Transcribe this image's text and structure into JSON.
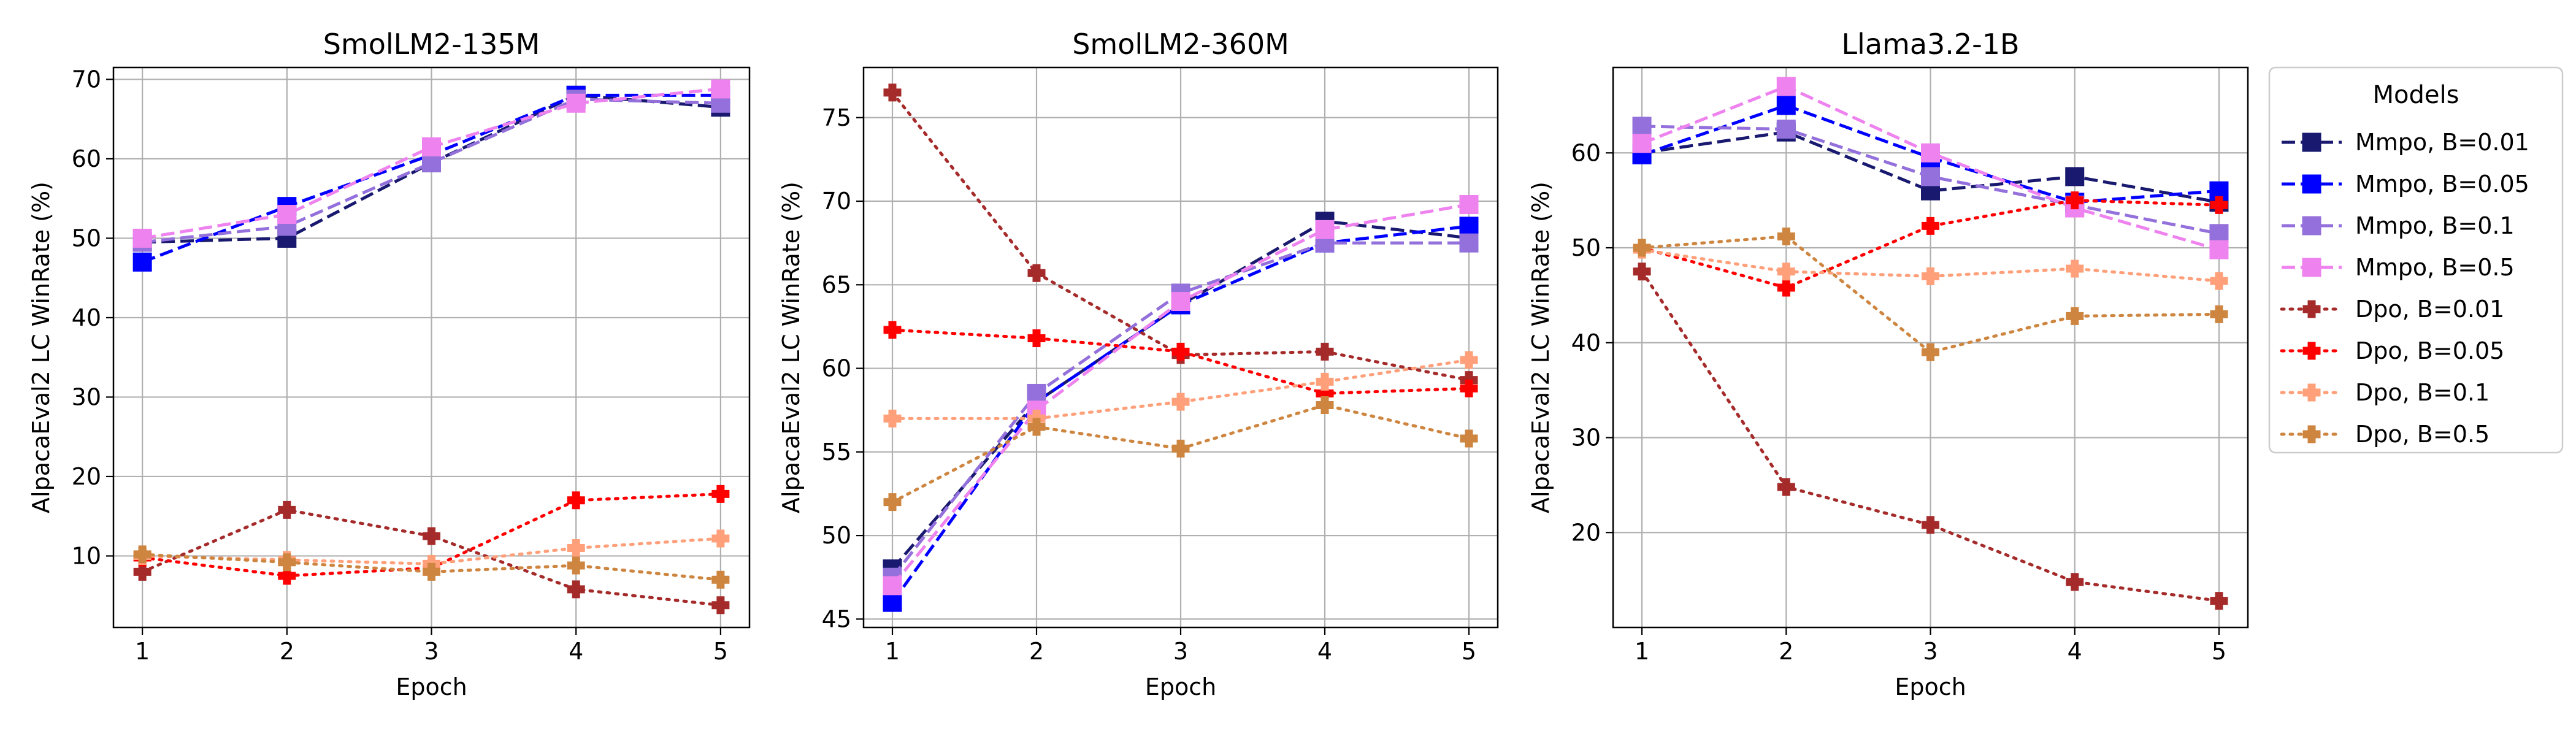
{
  "figure": {
    "xlabel": "Epoch",
    "ylabel": "AlpacaEval2 LC WinRate (%)",
    "legend_title": "Models",
    "legend_position": "right-outside"
  },
  "series_styles": [
    {
      "name": "Mmpo, B=0.01",
      "color": "#191970",
      "dash": "dashed",
      "marker": "square"
    },
    {
      "name": "Mmpo, B=0.05",
      "color": "#0000ff",
      "dash": "dashed",
      "marker": "square"
    },
    {
      "name": "Mmpo, B=0.1",
      "color": "#9370db",
      "dash": "dashed",
      "marker": "square"
    },
    {
      "name": "Mmpo, B=0.5",
      "color": "#ee82ee",
      "dash": "dashed",
      "marker": "square"
    },
    {
      "name": "Dpo, B=0.01",
      "color": "#a52a2a",
      "dash": "dotted",
      "marker": "plus"
    },
    {
      "name": "Dpo, B=0.05",
      "color": "#ff0000",
      "dash": "dotted",
      "marker": "plus"
    },
    {
      "name": "Dpo, B=0.1",
      "color": "#ffa07a",
      "dash": "dotted",
      "marker": "plus"
    },
    {
      "name": "Dpo, B=0.5",
      "color": "#cd853f",
      "dash": "dotted",
      "marker": "plus"
    }
  ],
  "chart_data": [
    {
      "type": "line",
      "title": "SmolLM2-135M",
      "xlabel": "Epoch",
      "ylabel": "AlpacaEval2 LC WinRate (%)",
      "x": [
        1,
        2,
        3,
        4,
        5
      ],
      "xticks": [
        1,
        2,
        3,
        4,
        5
      ],
      "yticks": [
        10,
        20,
        30,
        40,
        50,
        60,
        70
      ],
      "xlim": [
        0.8,
        5.2
      ],
      "ylim": [
        1.0,
        71.5
      ],
      "grid": true,
      "series": [
        {
          "name": "Mmpo, B=0.01",
          "values": [
            49.5,
            50.0,
            59.5,
            68.0,
            66.5
          ]
        },
        {
          "name": "Mmpo, B=0.05",
          "values": [
            47.0,
            54.0,
            60.5,
            68.0,
            68.0
          ]
        },
        {
          "name": "Mmpo, B=0.1",
          "values": [
            49.5,
            51.5,
            59.5,
            67.5,
            67.0
          ]
        },
        {
          "name": "Mmpo, B=0.5",
          "values": [
            50.0,
            53.0,
            61.5,
            67.0,
            68.8
          ]
        },
        {
          "name": "Dpo, B=0.01",
          "values": [
            8.0,
            15.8,
            12.5,
            5.8,
            3.8
          ]
        },
        {
          "name": "Dpo, B=0.05",
          "values": [
            9.8,
            7.5,
            8.5,
            17.0,
            17.8
          ]
        },
        {
          "name": "Dpo, B=0.1",
          "values": [
            10.0,
            9.5,
            9.0,
            11.0,
            12.2
          ]
        },
        {
          "name": "Dpo, B=0.5",
          "values": [
            10.2,
            9.2,
            8.0,
            8.8,
            7.0
          ]
        }
      ]
    },
    {
      "type": "line",
      "title": "SmolLM2-360M",
      "xlabel": "Epoch",
      "ylabel": "AlpacaEval2 LC WinRate (%)",
      "x": [
        1,
        2,
        3,
        4,
        5
      ],
      "xticks": [
        1,
        2,
        3,
        4,
        5
      ],
      "yticks": [
        45,
        50,
        55,
        60,
        65,
        70,
        75
      ],
      "xlim": [
        0.8,
        5.2
      ],
      "ylim": [
        44.5,
        78.0
      ],
      "grid": true,
      "series": [
        {
          "name": "Mmpo, B=0.01",
          "values": [
            48.0,
            58.0,
            63.8,
            68.8,
            67.8
          ]
        },
        {
          "name": "Mmpo, B=0.05",
          "values": [
            46.0,
            58.0,
            63.8,
            67.5,
            68.5
          ]
        },
        {
          "name": "Mmpo, B=0.1",
          "values": [
            47.5,
            58.5,
            64.5,
            67.5,
            67.5
          ]
        },
        {
          "name": "Mmpo, B=0.5",
          "values": [
            47.0,
            57.5,
            64.0,
            68.3,
            69.8
          ]
        },
        {
          "name": "Dpo, B=0.01",
          "values": [
            76.5,
            65.7,
            60.8,
            61.0,
            59.3
          ]
        },
        {
          "name": "Dpo, B=0.05",
          "values": [
            62.3,
            61.8,
            61.0,
            58.5,
            58.8
          ]
        },
        {
          "name": "Dpo, B=0.1",
          "values": [
            57.0,
            57.0,
            58.0,
            59.2,
            60.5
          ]
        },
        {
          "name": "Dpo, B=0.5",
          "values": [
            52.0,
            56.5,
            55.2,
            57.8,
            55.8
          ]
        }
      ]
    },
    {
      "type": "line",
      "title": "Llama3.2-1B",
      "xlabel": "Epoch",
      "ylabel": "AlpacaEval2 LC WinRate (%)",
      "x": [
        1,
        2,
        3,
        4,
        5
      ],
      "xticks": [
        1,
        2,
        3,
        4,
        5
      ],
      "yticks": [
        20,
        30,
        40,
        50,
        60
      ],
      "xlim": [
        0.8,
        5.2
      ],
      "ylim": [
        10.0,
        69.0
      ],
      "grid": true,
      "series": [
        {
          "name": "Mmpo, B=0.01",
          "values": [
            60.0,
            62.2,
            56.0,
            57.5,
            54.8
          ]
        },
        {
          "name": "Mmpo, B=0.05",
          "values": [
            59.8,
            65.0,
            59.5,
            54.8,
            56.0
          ]
        },
        {
          "name": "Mmpo, B=0.1",
          "values": [
            62.8,
            62.5,
            57.5,
            54.5,
            51.5
          ]
        },
        {
          "name": "Mmpo, B=0.5",
          "values": [
            61.0,
            67.0,
            60.0,
            54.2,
            49.8
          ]
        },
        {
          "name": "Dpo, B=0.01",
          "values": [
            47.5,
            24.8,
            20.8,
            14.8,
            12.8
          ]
        },
        {
          "name": "Dpo, B=0.05",
          "values": [
            50.0,
            45.8,
            52.3,
            55.0,
            54.5
          ]
        },
        {
          "name": "Dpo, B=0.1",
          "values": [
            49.8,
            47.5,
            47.0,
            47.8,
            46.5
          ]
        },
        {
          "name": "Dpo, B=0.5",
          "values": [
            50.0,
            51.2,
            39.0,
            42.8,
            43.0
          ]
        }
      ]
    }
  ]
}
